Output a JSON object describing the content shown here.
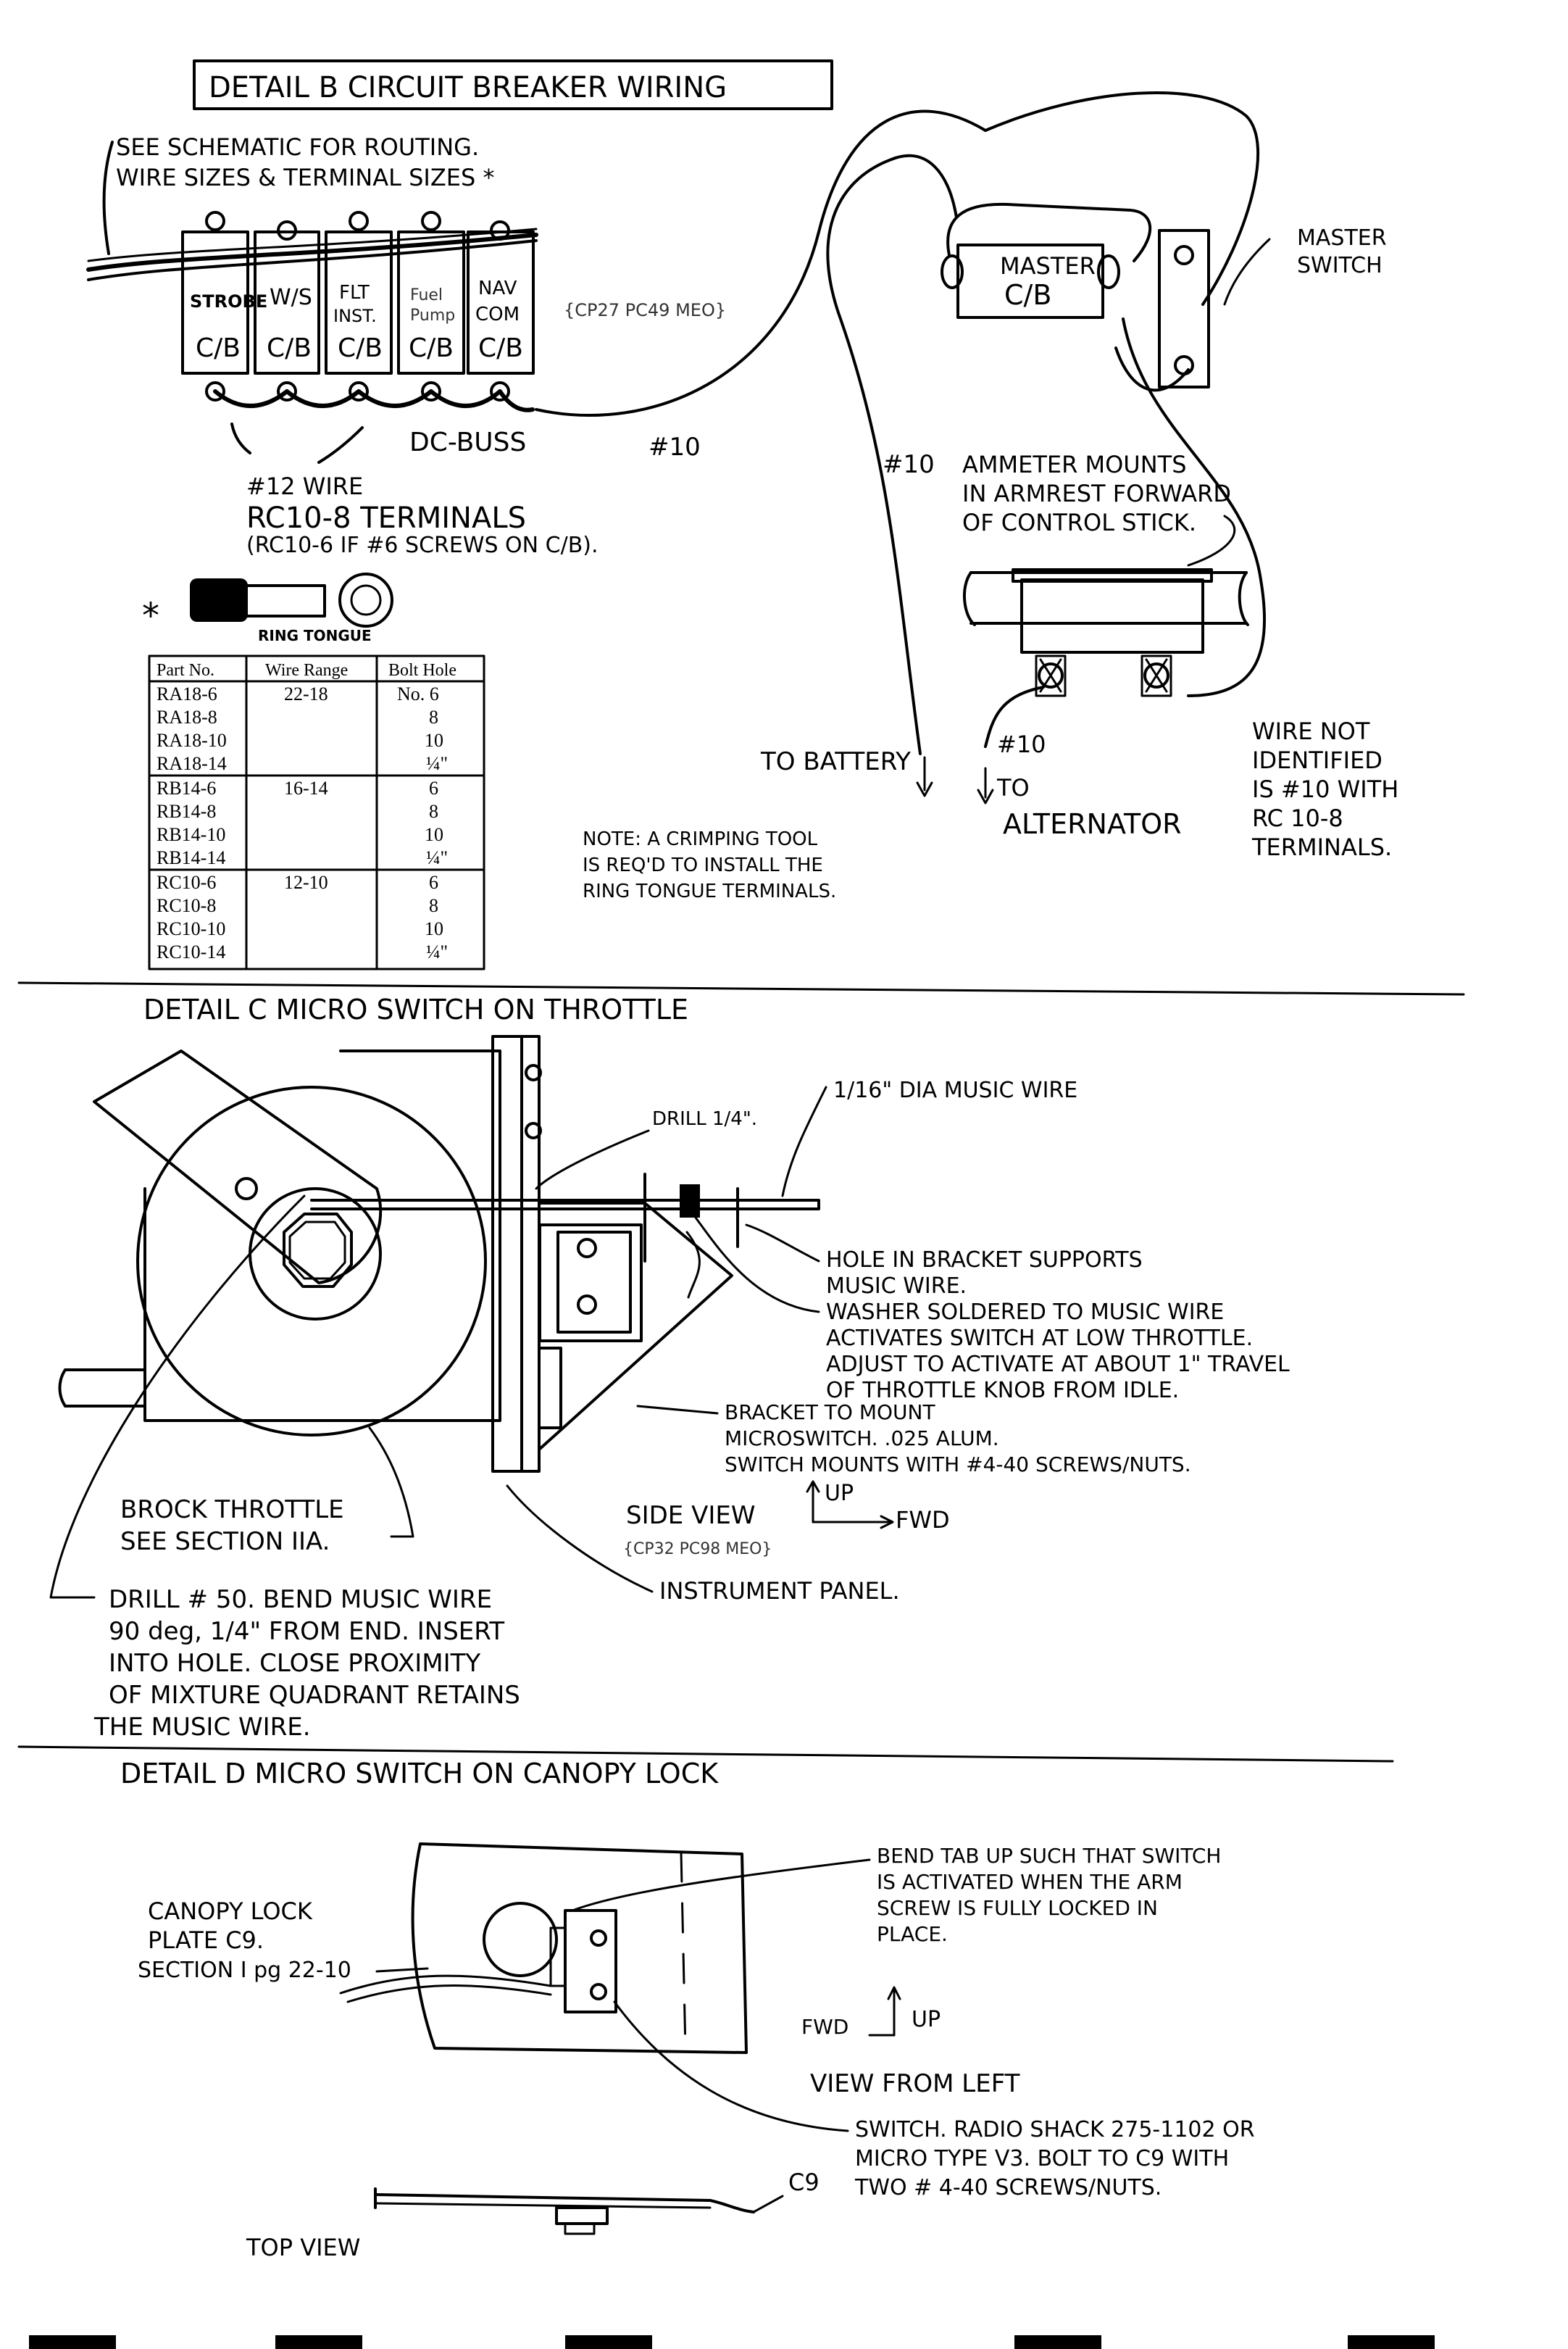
{
  "detail_b": {
    "title": "DETAIL B   CIRCUIT BREAKER WIRING",
    "note_line1": "SEE SCHEMATIC FOR ROUTING.",
    "note_line2": "WIRE SIZES & TERMINAL SIZES *",
    "breakers": [
      {
        "line1": "STROBE",
        "line2": "C/B"
      },
      {
        "line1": "W/S",
        "line2": "C/B"
      },
      {
        "line1": "FLT",
        "line1b": "INST.",
        "line2": "C/B"
      },
      {
        "line1": "Fuel",
        "line1b": "Pump",
        "line2": "C/B"
      },
      {
        "line1": "NAV",
        "line1b": "COM",
        "line2": "C/B"
      }
    ],
    "ref_code": "{CP27 PC49 MEO}",
    "dc_buss": "DC-BUSS",
    "wire10_a": "#10",
    "wire12": "#12 WIRE",
    "rc_terminals": "RC10-8 TERMINALS",
    "rc_note": "(RC10-6 IF #6 SCREWS ON C/B).",
    "ring_tongue_label": "RING TONGUE",
    "star": "*",
    "master_cb_line1": "MASTER",
    "master_cb_line2": "C/B",
    "master_switch_line1": "MASTER",
    "master_switch_line2": "SWITCH",
    "wire10_b": "#10",
    "ammeter_line1": "AMMETER MOUNTS",
    "ammeter_line2": "IN ARMREST FORWARD",
    "ammeter_line3": "OF CONTROL STICK.",
    "to_battery": "TO BATTERY",
    "wire10_c": "#10",
    "to": "TO",
    "alternator": "ALTERNATOR",
    "wire_not_line1": "WIRE NOT",
    "wire_not_line2": "IDENTIFIED",
    "wire_not_line3": "IS #10 WITH",
    "wire_not_line4": "RC 10-8",
    "wire_not_line5": "TERMINALS.",
    "note_crimp_line1": "NOTE: A CRIMPING TOOL",
    "note_crimp_line2": "IS REQ'D TO INSTALL THE",
    "note_crimp_line3": "RING TONGUE TERMINALS."
  },
  "part_table": {
    "headers": [
      "Part No.",
      "Wire Range",
      "Bolt Hole"
    ],
    "groups": [
      {
        "range": "22-18",
        "rows": [
          [
            "RA18-6",
            "No. 6"
          ],
          [
            "RA18-8",
            "8"
          ],
          [
            "RA18-10",
            "10"
          ],
          [
            "RA18-14",
            "¼\""
          ]
        ]
      },
      {
        "range": "16-14",
        "rows": [
          [
            "RB14-6",
            "6"
          ],
          [
            "RB14-8",
            "8"
          ],
          [
            "RB14-10",
            "10"
          ],
          [
            "RB14-14",
            "¼\""
          ]
        ]
      },
      {
        "range": "12-10",
        "rows": [
          [
            "RC10-6",
            "6"
          ],
          [
            "RC10-8",
            "8"
          ],
          [
            "RC10-10",
            "10"
          ],
          [
            "RC10-14",
            "¼\""
          ]
        ]
      }
    ]
  },
  "detail_c": {
    "title": "DETAIL C     MICRO SWITCH   ON THROTTLE",
    "drill_quarter": "DRILL 1/4\".",
    "music_wire": "1/16\" DIA MUSIC WIRE",
    "hole_line1": "HOLE IN BRACKET SUPPORTS",
    "hole_line2": "MUSIC WIRE.",
    "washer_line1": "WASHER SOLDERED TO MUSIC WIRE",
    "washer_line2": "ACTIVATES SWITCH AT LOW THROTTLE.",
    "washer_line3": "ADJUST TO ACTIVATE AT ABOUT 1\" TRAVEL",
    "washer_line4": "OF THROTTLE KNOB FROM IDLE.",
    "bracket_line1": "BRACKET TO MOUNT",
    "bracket_line2": "MICROSWITCH. .025 ALUM.",
    "bracket_line3": "SWITCH MOUNTS WITH #4-40 SCREWS/NUTS.",
    "brock_line1": "BROCK THROTTLE",
    "brock_line2": "SEE SECTION IIA.",
    "side_view": "SIDE VIEW",
    "up": "UP",
    "fwd": "FWD",
    "ref_code": "{CP32 PC98 MEO}",
    "drill50_line1": "DRILL # 50. BEND MUSIC WIRE",
    "drill50_line2": "90 deg, 1/4\" FROM END. INSERT",
    "drill50_line3": "INTO HOLE. CLOSE PROXIMITY",
    "drill50_line4": "OF MIXTURE QUADRANT RETAINS",
    "drill50_line5": "THE MUSIC WIRE.",
    "instrument_panel": "INSTRUMENT PANEL."
  },
  "detail_d": {
    "title": "DETAIL D    MICRO SWITCH  ON  CANOPY LOCK",
    "canopy_line1": "CANOPY LOCK",
    "canopy_line2": "PLATE C9.",
    "canopy_line3": "SECTION I pg 22-10",
    "bend_line1": "BEND TAB UP SUCH THAT SWITCH",
    "bend_line2": "IS ACTIVATED WHEN THE    ARM",
    "bend_line3": "SCREW IS FULLY LOCKED IN",
    "bend_line4": "PLACE.",
    "fwd": "FWD",
    "up": "UP",
    "view_from_left": "VIEW FROM LEFT",
    "switch_line1": "SWITCH. RADIO SHACK 275-1102 OR",
    "switch_line2": "MICRO TYPE V3. BOLT TO C9 WITH",
    "switch_line3": "TWO # 4-40 SCREWS/NUTS.",
    "c9": "C9",
    "top_view": "TOP VIEW"
  }
}
